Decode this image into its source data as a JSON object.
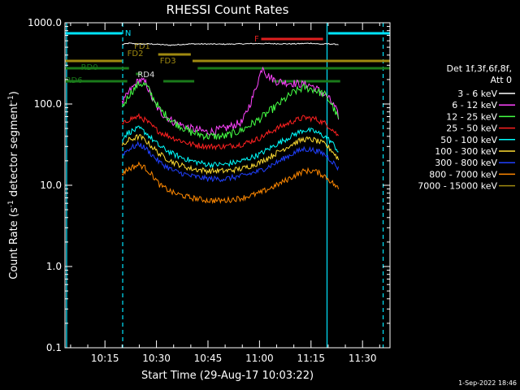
{
  "chart_data": {
    "type": "line",
    "title": "RHESSI Count Rates",
    "xlabel": "Start Time (29-Aug-17 10:03:22)",
    "ylabel_main": "Count Rate (s",
    "ylabel_sup1": "-1",
    "ylabel_mid": " detector segment",
    "ylabel_sup2": "-1",
    "ylabel_end": ")",
    "y_scale": "log",
    "ylim": [
      0.1,
      1000
    ],
    "xlim": [
      "10:03:22",
      "11:38:00"
    ],
    "x_ticks": [
      "10:15",
      "10:30",
      "10:45",
      "11:00",
      "11:15",
      "11:30"
    ],
    "y_ticks": [
      "0.1",
      "1.0",
      "10.0",
      "100.0",
      "1000.0"
    ],
    "legend_title_1": "Det 1f,3f,6f,8f,",
    "legend_title_2": "Att 0",
    "series": [
      {
        "name": "3 - 6 keV",
        "color": "#ffffff",
        "x": [
          "10:20",
          "10:22",
          "10:25",
          "10:28",
          "10:31",
          "10:34",
          "10:40",
          "10:50",
          "11:00",
          "11:10",
          "11:15",
          "11:18",
          "11:20",
          "11:23"
        ],
        "values": [
          540,
          560,
          545,
          550,
          540,
          530,
          550,
          545,
          555,
          550,
          560,
          545,
          550,
          540
        ]
      },
      {
        "name": "6 - 12 keV",
        "color": "#ff44ff",
        "x": [
          "10:20",
          "10:22",
          "10:25",
          "10:27",
          "10:29",
          "10:31",
          "10:35",
          "10:40",
          "10:45",
          "10:50",
          "10:55",
          "10:58",
          "11:00",
          "11:01",
          "11:02",
          "11:05",
          "11:10",
          "11:15",
          "11:18",
          "11:20",
          "11:22",
          "11:23"
        ],
        "values": [
          100,
          140,
          200,
          180,
          110,
          80,
          60,
          50,
          45,
          50,
          60,
          120,
          220,
          300,
          230,
          190,
          180,
          170,
          140,
          120,
          90,
          70
        ]
      },
      {
        "name": "12 - 25 keV",
        "color": "#44ff44",
        "x": [
          "10:20",
          "10:22",
          "10:25",
          "10:27",
          "10:29",
          "10:31",
          "10:35",
          "10:40",
          "10:45",
          "10:50",
          "10:55",
          "11:00",
          "11:05",
          "11:10",
          "11:13",
          "11:16",
          "11:19",
          "11:21",
          "11:23"
        ],
        "values": [
          90,
          130,
          180,
          170,
          120,
          85,
          60,
          45,
          40,
          40,
          48,
          65,
          95,
          140,
          160,
          150,
          130,
          100,
          65
        ]
      },
      {
        "name": "25 - 50 keV",
        "color": "#ff2020",
        "x": [
          "10:20",
          "10:22",
          "10:25",
          "10:27",
          "10:29",
          "10:31",
          "10:35",
          "10:40",
          "10:45",
          "10:50",
          "10:55",
          "11:00",
          "11:05",
          "11:10",
          "11:13",
          "11:16",
          "11:19",
          "11:21",
          "11:23"
        ],
        "values": [
          55,
          65,
          70,
          62,
          52,
          45,
          38,
          32,
          30,
          30,
          32,
          38,
          50,
          62,
          68,
          66,
          58,
          50,
          40
        ]
      },
      {
        "name": "50 - 100 keV",
        "color": "#00ffff",
        "x": [
          "10:20",
          "10:22",
          "10:25",
          "10:27",
          "10:29",
          "10:31",
          "10:35",
          "10:40",
          "10:45",
          "10:50",
          "10:55",
          "11:00",
          "11:05",
          "11:10",
          "11:13",
          "11:16",
          "11:19",
          "11:21",
          "11:23"
        ],
        "values": [
          38,
          45,
          50,
          44,
          36,
          30,
          24,
          20,
          18,
          18,
          20,
          24,
          32,
          42,
          48,
          46,
          40,
          34,
          26
        ]
      },
      {
        "name": "100 - 300 keV",
        "color": "#ffdd33",
        "x": [
          "10:20",
          "10:22",
          "10:25",
          "10:27",
          "10:29",
          "10:31",
          "10:35",
          "10:40",
          "10:45",
          "10:50",
          "10:55",
          "11:00",
          "11:05",
          "11:10",
          "11:13",
          "11:16",
          "11:19",
          "11:21",
          "11:23"
        ],
        "values": [
          30,
          36,
          40,
          35,
          29,
          24,
          19,
          16,
          15,
          15,
          16,
          19,
          25,
          33,
          37,
          36,
          32,
          27,
          21
        ]
      },
      {
        "name": "300 - 800 keV",
        "color": "#2040ff",
        "x": [
          "10:20",
          "10:22",
          "10:25",
          "10:27",
          "10:29",
          "10:31",
          "10:35",
          "10:40",
          "10:45",
          "10:50",
          "10:55",
          "11:00",
          "11:05",
          "11:10",
          "11:13",
          "11:16",
          "11:19",
          "11:21",
          "11:23"
        ],
        "values": [
          24,
          28,
          32,
          28,
          23,
          19,
          15,
          13,
          12,
          12,
          13,
          15,
          19,
          25,
          28,
          27,
          24,
          20,
          16
        ]
      },
      {
        "name": "800 - 7000 keV",
        "color": "#ff8800",
        "x": [
          "10:20",
          "10:22",
          "10:25",
          "10:27",
          "10:29",
          "10:31",
          "10:35",
          "10:40",
          "10:45",
          "10:50",
          "10:55",
          "11:00",
          "11:05",
          "11:10",
          "11:13",
          "11:16",
          "11:19",
          "11:21",
          "11:23"
        ],
        "values": [
          14,
          16,
          18,
          16,
          13,
          10,
          8,
          7,
          6.5,
          6.5,
          7,
          8,
          10,
          13,
          15,
          15,
          13,
          11,
          9
        ]
      },
      {
        "name": "7000 - 15000 keV",
        "color": "#a08a10",
        "x": [],
        "values": []
      }
    ],
    "annotations": [
      {
        "label": "N",
        "color": "#00e5ff"
      },
      {
        "label": "F",
        "color": "#e02020"
      },
      {
        "label": "FD1",
        "color": "#a08a10"
      },
      {
        "label": "FD2",
        "color": "#a08a10"
      },
      {
        "label": "FD3",
        "color": "#a08a10"
      },
      {
        "label": "RD0",
        "color": "#1a7a1a"
      },
      {
        "label": "RD4",
        "color": "#1a7a1a"
      },
      {
        "label": "RD6",
        "color": "#1a7a1a"
      }
    ]
  },
  "footer": {
    "timestamp": "1-Sep-2022 18:46"
  }
}
